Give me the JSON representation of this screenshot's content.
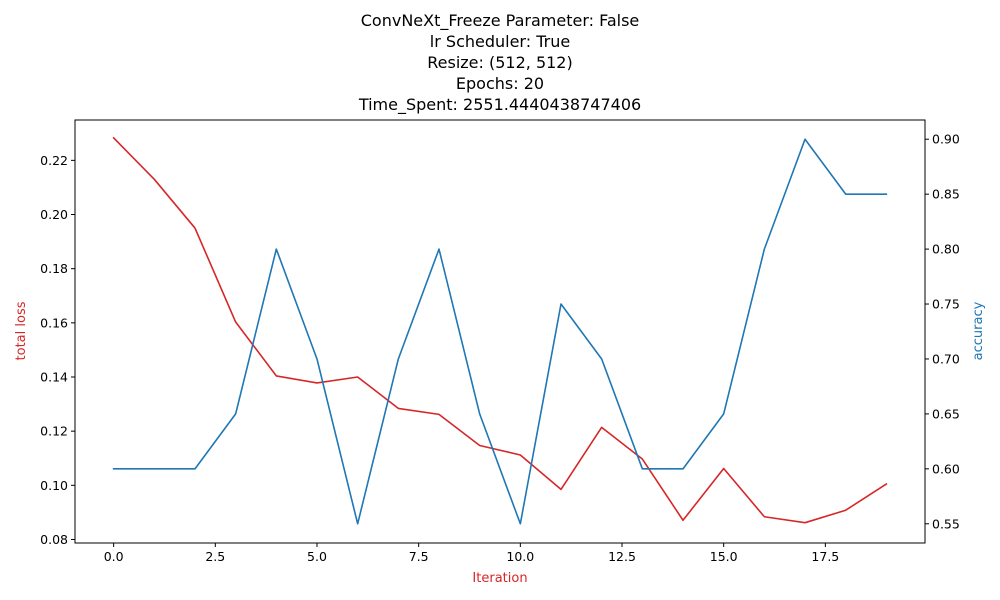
{
  "chart_data": {
    "type": "line",
    "title_lines": [
      "ConvNeXt_Freeze Parameter: False",
      "lr Scheduler: True",
      "Resize: (512, 512)",
      "Epochs: 20",
      "Time_Spent: 2551.4440438747406"
    ],
    "xlabel": "Iteration",
    "ylabel_left": "total loss",
    "ylabel_right": "accuracy",
    "x": [
      0,
      1,
      2,
      3,
      4,
      5,
      6,
      7,
      8,
      9,
      10,
      11,
      12,
      13,
      14,
      15,
      16,
      17,
      18,
      19
    ],
    "xlim": [
      -0.95,
      19.95
    ],
    "xticks": [
      0.0,
      2.5,
      5.0,
      7.5,
      10.0,
      12.5,
      15.0,
      17.5
    ],
    "xtick_labels": [
      "0.0",
      "2.5",
      "5.0",
      "7.5",
      "10.0",
      "12.5",
      "15.0",
      "17.5"
    ],
    "ylim_left": [
      0.0787,
      0.2349
    ],
    "yticks_left": [
      0.08,
      0.1,
      0.12,
      0.14,
      0.16,
      0.18,
      0.2,
      0.22
    ],
    "ytick_labels_left": [
      "0.08",
      "0.10",
      "0.12",
      "0.14",
      "0.16",
      "0.18",
      "0.20",
      "0.22"
    ],
    "ylim_right": [
      0.5325,
      0.9175
    ],
    "yticks_right": [
      0.55,
      0.6,
      0.65,
      0.7,
      0.75,
      0.8,
      0.85,
      0.9
    ],
    "ytick_labels_right": [
      "0.55",
      "0.60",
      "0.65",
      "0.70",
      "0.75",
      "0.80",
      "0.85",
      "0.90"
    ],
    "series": [
      {
        "name": "total loss",
        "axis": "left",
        "color": "#d62728",
        "values": [
          0.2283,
          0.213,
          0.195,
          0.1603,
          0.1404,
          0.1378,
          0.14,
          0.1284,
          0.1262,
          0.1147,
          0.1112,
          0.0985,
          0.1214,
          0.1097,
          0.0871,
          0.1062,
          0.0884,
          0.0862,
          0.0908,
          0.1005
        ]
      },
      {
        "name": "accuracy",
        "axis": "right",
        "color": "#1f77b4",
        "values": [
          0.6,
          0.6,
          0.6,
          0.65,
          0.8,
          0.7,
          0.55,
          0.7,
          0.8,
          0.65,
          0.55,
          0.75,
          0.7,
          0.6,
          0.6,
          0.65,
          0.8,
          0.9,
          0.85,
          0.85
        ]
      }
    ],
    "grid": false,
    "legend": "none"
  }
}
